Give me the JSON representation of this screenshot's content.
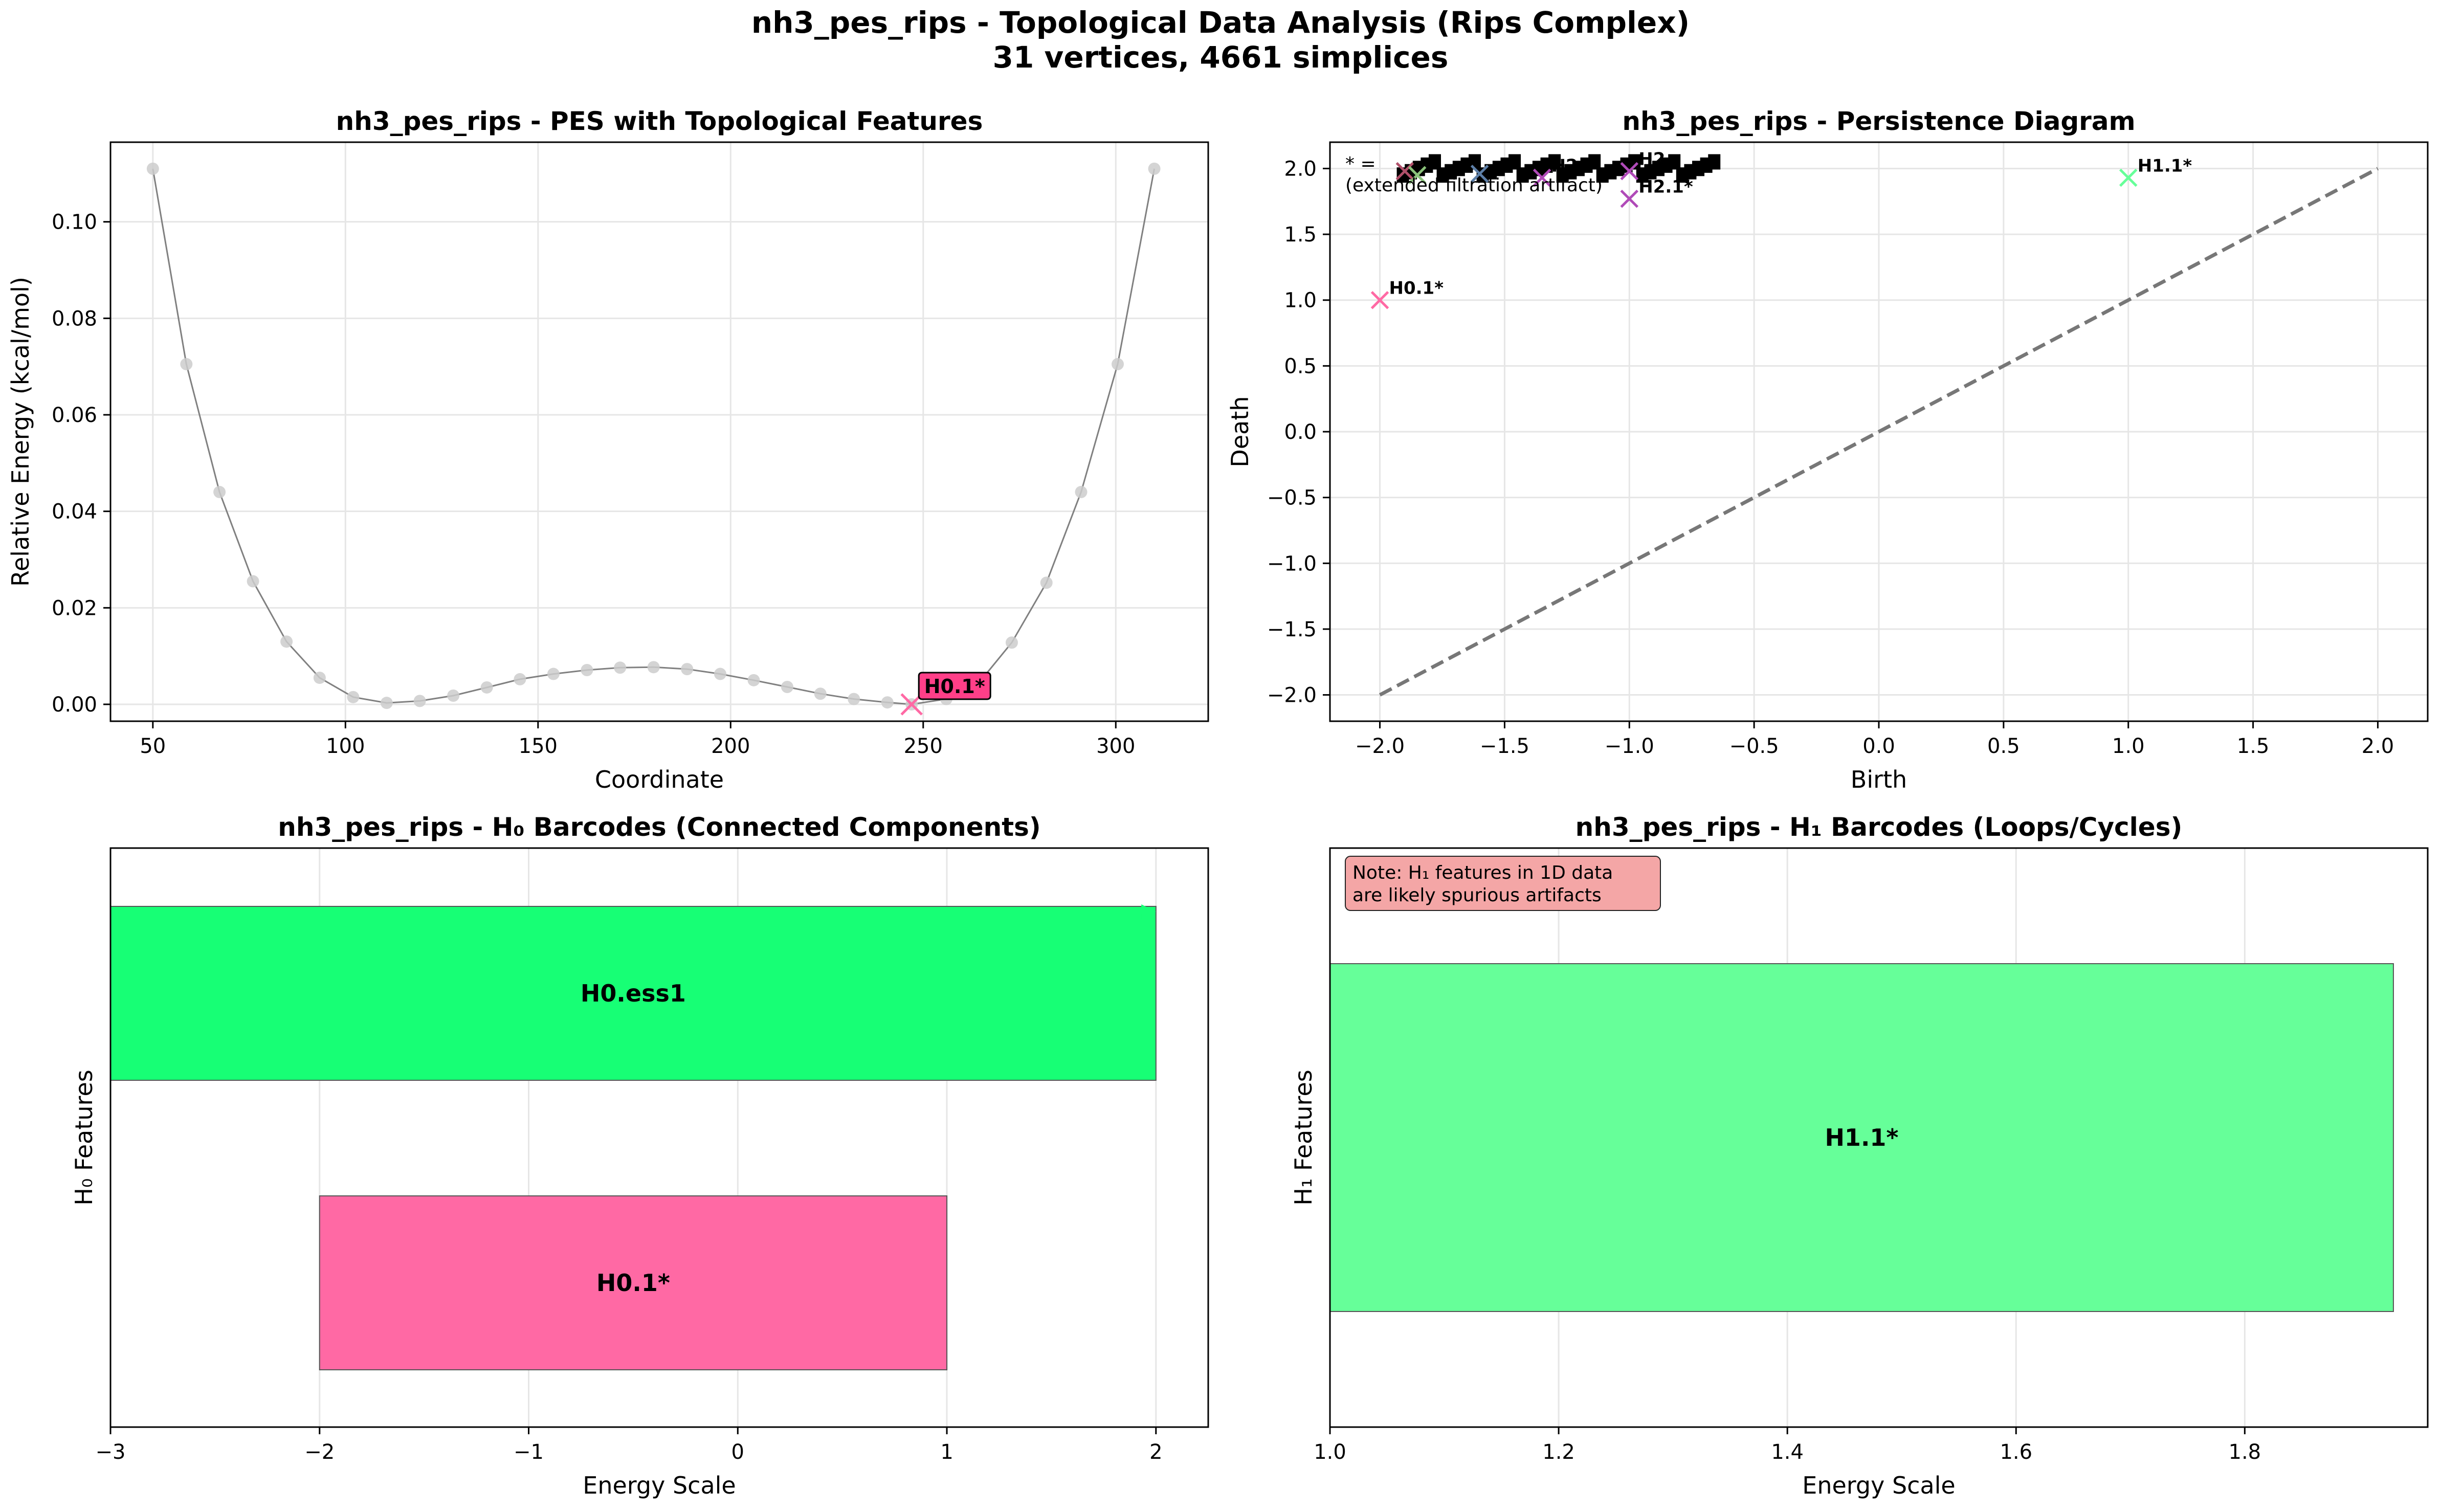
{
  "figure": {
    "title_line1": "nh3_pes_rips - Topological Data Analysis (Rips Complex)",
    "title_line2": "31 vertices, 4661 simplices"
  },
  "colors": {
    "grid": "#e6e6e6",
    "pes_line": "#808080",
    "pes_point": "#cccccc",
    "h0_1": "#ff69a4",
    "h0_ess": "#17ff75",
    "h1_1": "#66ff99",
    "diag_line": "#777777",
    "note_bg": "#f4a6a6",
    "annot_bg": "#ff3f88"
  },
  "chart_data": [
    {
      "type": "line",
      "title": "nh3_pes_rips - PES with Topological Features",
      "xlabel": "Coordinate",
      "ylabel": "Relative Energy (kcal/mol)",
      "xlim": [
        39,
        324
      ],
      "ylim": [
        -0.0035,
        0.1165
      ],
      "xticks": [
        50,
        100,
        150,
        200,
        250,
        300
      ],
      "yticks": [
        0.0,
        0.02,
        0.04,
        0.06,
        0.08,
        0.1
      ],
      "ytick_labels": [
        "0.00",
        "0.02",
        "0.04",
        "0.06",
        "0.08",
        "0.10"
      ],
      "grid": true,
      "x": [
        50,
        58.7,
        67.3,
        76,
        84.7,
        93.3,
        102,
        110.7,
        119.3,
        128,
        136.7,
        145.3,
        154,
        162.7,
        171.3,
        180,
        188.7,
        197.3,
        206,
        214.7,
        223.3,
        232,
        240.7,
        247,
        256,
        264.5,
        273,
        282,
        291,
        300.5,
        310
      ],
      "y": [
        0.111,
        0.0705,
        0.044,
        0.0255,
        0.013,
        0.0055,
        0.0015,
        0.0003,
        0.0007,
        0.0018,
        0.0035,
        0.0052,
        0.0063,
        0.0071,
        0.0076,
        0.0077,
        0.0073,
        0.0063,
        0.005,
        0.0036,
        0.0022,
        0.0011,
        0.0004,
        0.0,
        0.0011,
        0.0045,
        0.0128,
        0.0252,
        0.044,
        0.0705,
        0.111
      ],
      "annotations": [
        {
          "label": "H0.1*",
          "x": 247,
          "y": 0.0
        }
      ]
    },
    {
      "type": "scatter",
      "title": "nh3_pes_rips - Persistence Diagram",
      "xlabel": "Birth",
      "ylabel": "Death",
      "xlim": [
        -2.2,
        2.2
      ],
      "ylim": [
        -2.2,
        2.2
      ],
      "xticks": [
        -2.0,
        -1.5,
        -1.0,
        -0.5,
        0.0,
        0.5,
        1.0,
        1.5,
        2.0
      ],
      "xtick_labels": [
        "−2.0",
        "−1.5",
        "−1.0",
        "−0.5",
        "0.0",
        "0.5",
        "1.0",
        "1.5",
        "2.0"
      ],
      "yticks": [
        -2.0,
        -1.5,
        -1.0,
        -0.5,
        0.0,
        0.5,
        1.0,
        1.5,
        2.0
      ],
      "ytick_labels": [
        "−2.0",
        "−1.5",
        "−1.0",
        "−0.5",
        "0.0",
        "0.5",
        "1.0",
        "1.5",
        "2.0"
      ],
      "grid": true,
      "diagonal": [
        -2.0,
        2.0
      ],
      "points": [
        {
          "label": "H0.1*",
          "birth": -2.0,
          "death": 1.0
        },
        {
          "label": "H1.1*",
          "birth": 1.0,
          "death": 1.93
        },
        {
          "label": "H2.1*",
          "birth": -1.0,
          "death": 1.77
        },
        {
          "label": "H2.",
          "birth": -1.0,
          "death": 1.98
        },
        {
          "label": "H2.",
          "birth": -1.35,
          "death": 1.93
        },
        {
          "label": "",
          "birth": -1.9,
          "death": 1.98
        },
        {
          "label": "",
          "birth": -1.85,
          "death": 1.95
        },
        {
          "label": "",
          "birth": -1.6,
          "death": 1.96
        }
      ],
      "note_line1": "* = ",
      "note_line2": "(extended filtration artifact)"
    },
    {
      "type": "bar",
      "title": "nh3_pes_rips - H₀ Barcodes (Connected Components)",
      "xlabel": "Energy Scale",
      "ylabel": "H₀ Features",
      "xlim": [
        -3,
        2.25
      ],
      "xticks": [
        -3,
        -2,
        -1,
        0,
        1,
        2
      ],
      "xtick_labels": [
        "−3",
        "−2",
        "−1",
        "0",
        "1",
        "2"
      ],
      "grid": true,
      "bars": [
        {
          "label": "H0.ess1",
          "start": -3.0,
          "end": 2.0
        },
        {
          "label": "H0.1*",
          "start": -2.0,
          "end": 1.0
        }
      ]
    },
    {
      "type": "bar",
      "title": "nh3_pes_rips - H₁ Barcodes (Loops/Cycles)",
      "xlabel": "Energy Scale",
      "ylabel": "H₁ Features",
      "xlim": [
        1.0,
        1.96
      ],
      "xticks": [
        1.0,
        1.2,
        1.4,
        1.6,
        1.8
      ],
      "xtick_labels": [
        "1.0",
        "1.2",
        "1.4",
        "1.6",
        "1.8"
      ],
      "grid": true,
      "bars": [
        {
          "label": "H1.1*",
          "start": 1.0,
          "end": 1.93
        }
      ],
      "note_line1": "Note: H₁ features in 1D data",
      "note_line2": "are likely spurious artifacts"
    }
  ]
}
